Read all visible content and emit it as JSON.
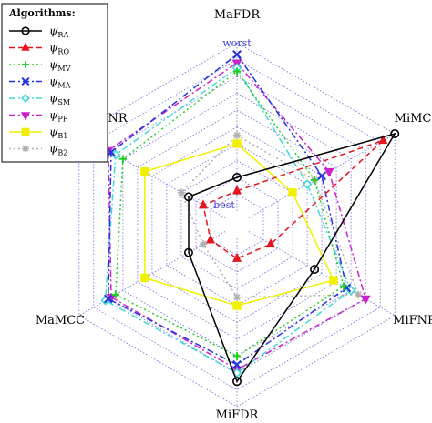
{
  "chart_data": {
    "type": "radar",
    "axes": [
      "MaFDR",
      "MiMCC",
      "MiFNR",
      "MiFDR",
      "MaMCC",
      "MaFNR"
    ],
    "scale_labels": {
      "outer": "worst",
      "inner": "best"
    },
    "rings": 10,
    "grid": true,
    "legend": {
      "title": "Algorithms:",
      "position": "top-left"
    },
    "series": [
      {
        "name": "ψRA",
        "symbol": "ψ",
        "sub": "RA",
        "color": "#000000",
        "dash": "",
        "marker": "circle",
        "values": [
          0.2,
          1.0,
          0.45,
          0.85,
          0.25,
          0.25
        ]
      },
      {
        "name": "ψRO",
        "symbol": "ψ",
        "sub": "RO",
        "color": "#e8141e",
        "dash": "6,4",
        "marker": "triangle",
        "values": [
          0.12,
          0.92,
          0.15,
          0.12,
          0.1,
          0.15
        ]
      },
      {
        "name": "ψMV",
        "symbol": "ψ",
        "sub": "MV",
        "color": "#22d022",
        "dash": "2,3",
        "marker": "plus",
        "values": [
          0.83,
          0.45,
          0.65,
          0.7,
          0.75,
          0.7
        ]
      },
      {
        "name": "ψMA",
        "symbol": "ψ",
        "sub": "MA",
        "color": "#2233dd",
        "dash": "7,3,2,3",
        "marker": "x",
        "values": [
          0.93,
          0.5,
          0.67,
          0.75,
          0.8,
          0.78
        ]
      },
      {
        "name": "ψSM",
        "symbol": "ψ",
        "sub": "SM",
        "color": "#40d8d8",
        "dash": "7,3,2,3",
        "marker": "diamond",
        "values": [
          0.85,
          0.4,
          0.7,
          0.8,
          0.82,
          0.75
        ]
      },
      {
        "name": "ψPF",
        "symbol": "ψ",
        "sub": "PF",
        "color": "#cc22cc",
        "dash": "7,3,2,3",
        "marker": "triangle-down",
        "values": [
          0.88,
          0.55,
          0.8,
          0.78,
          0.78,
          0.8
        ]
      },
      {
        "name": "ψB1",
        "symbol": "ψ",
        "sub": "B1",
        "color": "#f0f000",
        "dash": "",
        "marker": "square",
        "values": [
          0.4,
          0.3,
          0.58,
          0.4,
          0.55,
          0.55
        ]
      },
      {
        "name": "ψB2",
        "symbol": "ψ",
        "sub": "B2",
        "color": "#b0b0b0",
        "dash": "2,3",
        "marker": "asterisk",
        "values": [
          0.45,
          0.45,
          0.75,
          0.35,
          0.15,
          0.3
        ]
      }
    ]
  }
}
